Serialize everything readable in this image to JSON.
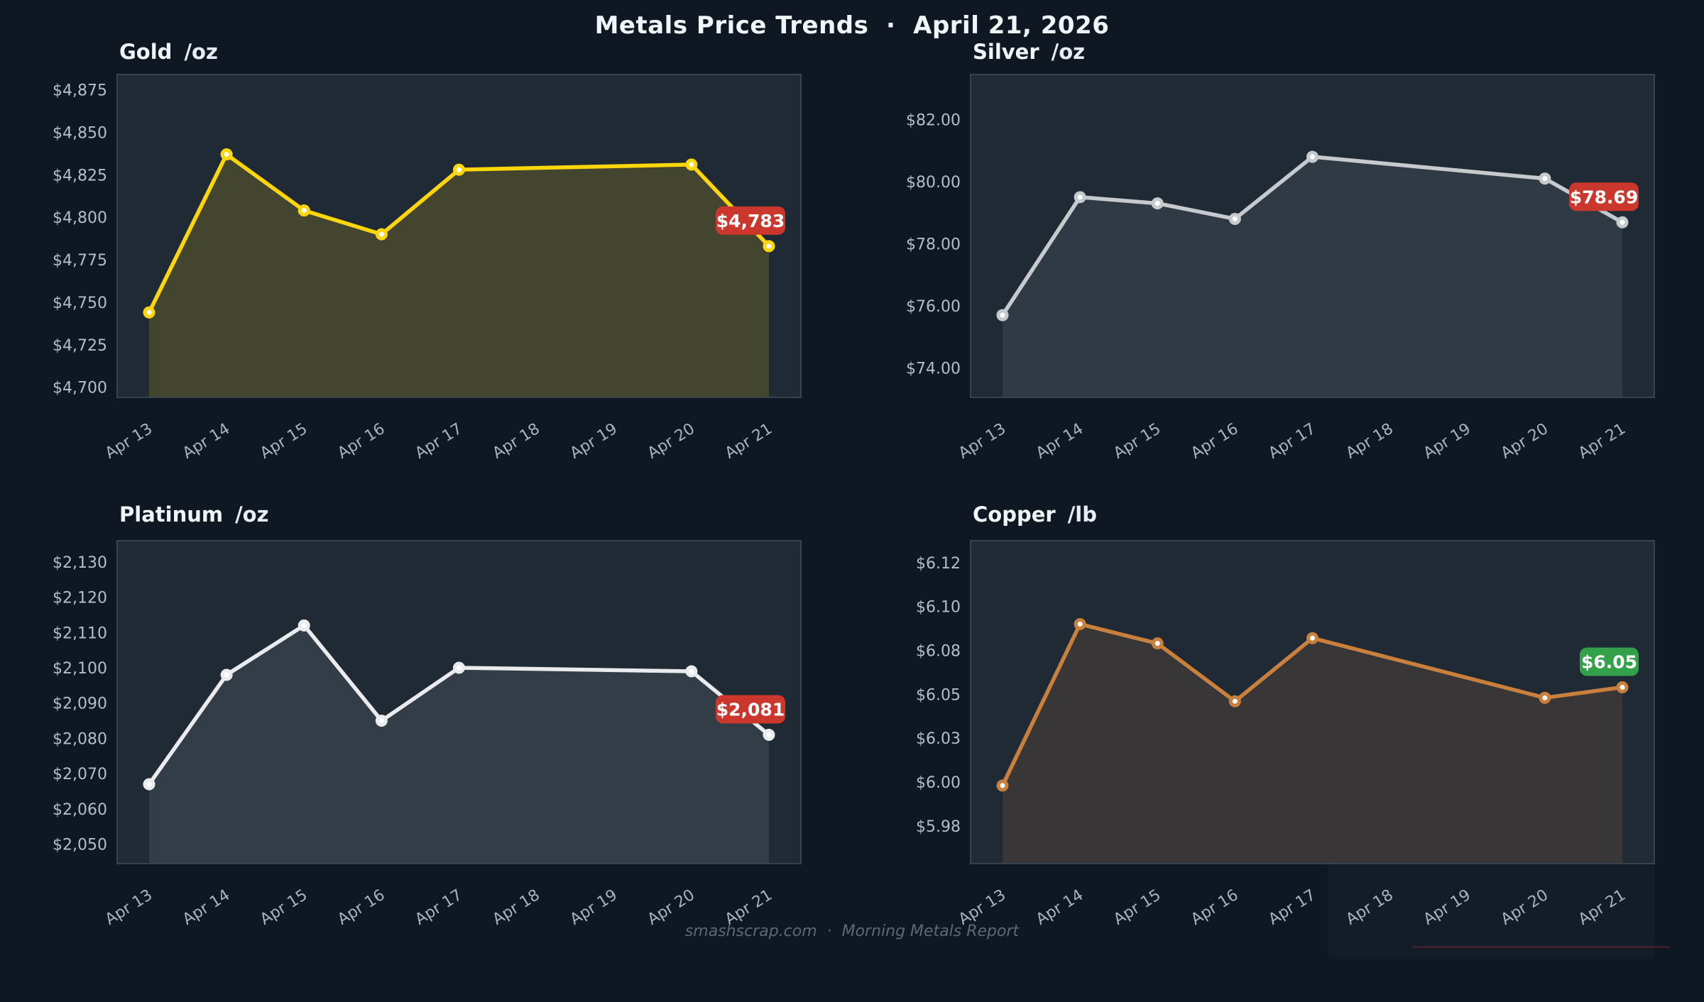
{
  "header": {
    "title": "Metals Price Trends  ·  April 21, 2026"
  },
  "footer": {
    "text": "smashscrap.com  ·  Morning Metals Report"
  },
  "theme": {
    "page_bg": "#0f1822",
    "panel_bg": "#1f2a35",
    "panel_border": "#36424f",
    "title_text": "#f2f5f8",
    "axis_text": "#b4bec8",
    "x_axis_text": "#a9b3bd",
    "footer_text": "#5d6875",
    "badge_text": "#ffffff",
    "badge_red": "#cb362d",
    "badge_green": "#33a04a"
  },
  "x_tick_labels": [
    "Apr 13",
    "Apr 14",
    "Apr 15",
    "Apr 16",
    "Apr 17",
    "Apr 18",
    "Apr 19",
    "Apr 20",
    "Apr 21"
  ],
  "chart_data": [
    {
      "type": "line",
      "title": "Gold",
      "unit": "/oz",
      "x": [
        "Apr 13",
        "Apr 14",
        "Apr 15",
        "Apr 16",
        "Apr 17",
        "Apr 20",
        "Apr 21"
      ],
      "x_day_offsets": [
        0,
        1,
        2,
        3,
        4,
        7,
        8
      ],
      "values": [
        4744,
        4837,
        4804,
        4790,
        4828,
        4831,
        4783
      ],
      "last_value_label": "$4,783",
      "badge_color": "#cb362d",
      "line_color": "#ffd60a",
      "fill_opacity": 0.16,
      "y_tick_values": [
        4875,
        4850,
        4825,
        4800,
        4775,
        4750,
        4725,
        4700
      ],
      "y_tick_labels": [
        "$4,875",
        "$4,850",
        "$4,825",
        "$4,800",
        "$4,775",
        "$4,750",
        "$4,725",
        "$4,700"
      ],
      "ylim": [
        4694,
        4884
      ],
      "grid": false,
      "legend": false
    },
    {
      "type": "line",
      "title": "Silver",
      "unit": "/oz",
      "x": [
        "Apr 13",
        "Apr 14",
        "Apr 15",
        "Apr 16",
        "Apr 17",
        "Apr 20",
        "Apr 21"
      ],
      "x_day_offsets": [
        0,
        1,
        2,
        3,
        4,
        7,
        8
      ],
      "values": [
        75.7,
        79.5,
        79.3,
        78.8,
        80.8,
        80.1,
        78.69
      ],
      "last_value_label": "$78.69",
      "badge_color": "#cb362d",
      "line_color": "#c7cacd",
      "fill_opacity": 0.1,
      "y_tick_values": [
        82,
        80,
        78,
        76,
        74
      ],
      "y_tick_labels": [
        "$82.00",
        "$80.00",
        "$78.00",
        "$76.00",
        "$74.00"
      ],
      "ylim": [
        73.05,
        83.45
      ],
      "grid": false,
      "legend": false
    },
    {
      "type": "line",
      "title": "Platinum",
      "unit": "/oz",
      "x": [
        "Apr 13",
        "Apr 14",
        "Apr 15",
        "Apr 16",
        "Apr 17",
        "Apr 20",
        "Apr 21"
      ],
      "x_day_offsets": [
        0,
        1,
        2,
        3,
        4,
        7,
        8
      ],
      "values": [
        2067,
        2098,
        2112,
        2085,
        2100,
        2099,
        2081
      ],
      "last_value_label": "$2,081",
      "badge_color": "#cb362d",
      "line_color": "#e9ebed",
      "fill_opacity": 0.1,
      "y_tick_values": [
        2130,
        2120,
        2110,
        2100,
        2090,
        2080,
        2070,
        2060,
        2050
      ],
      "y_tick_labels": [
        "$2,130",
        "$2,120",
        "$2,110",
        "$2,100",
        "$2,090",
        "$2,080",
        "$2,070",
        "$2,060",
        "$2,050"
      ],
      "ylim": [
        2044.5,
        2136
      ],
      "grid": false,
      "legend": false
    },
    {
      "type": "line",
      "title": "Copper",
      "unit": "/lb",
      "x": [
        "Apr 13",
        "Apr 14",
        "Apr 15",
        "Apr 16",
        "Apr 17",
        "Apr 20",
        "Apr 21"
      ],
      "x_day_offsets": [
        0,
        1,
        2,
        3,
        4,
        7,
        8
      ],
      "values": [
        5.998,
        6.09,
        6.079,
        6.046,
        6.082,
        6.048,
        6.054
      ],
      "last_value_label": "$6.05",
      "badge_color": "#33a04a",
      "line_color": "#c9803c",
      "fill_opacity": 0.15,
      "y_tick_values": [
        6.125,
        6.1,
        6.075,
        6.05,
        6.025,
        6.0,
        5.975
      ],
      "y_tick_labels": [
        "$6.12",
        "$6.10",
        "$6.08",
        "$6.05",
        "$6.03",
        "$6.00",
        "$5.98"
      ],
      "ylim": [
        5.9535,
        6.1375
      ],
      "grid": false,
      "legend": false
    }
  ]
}
